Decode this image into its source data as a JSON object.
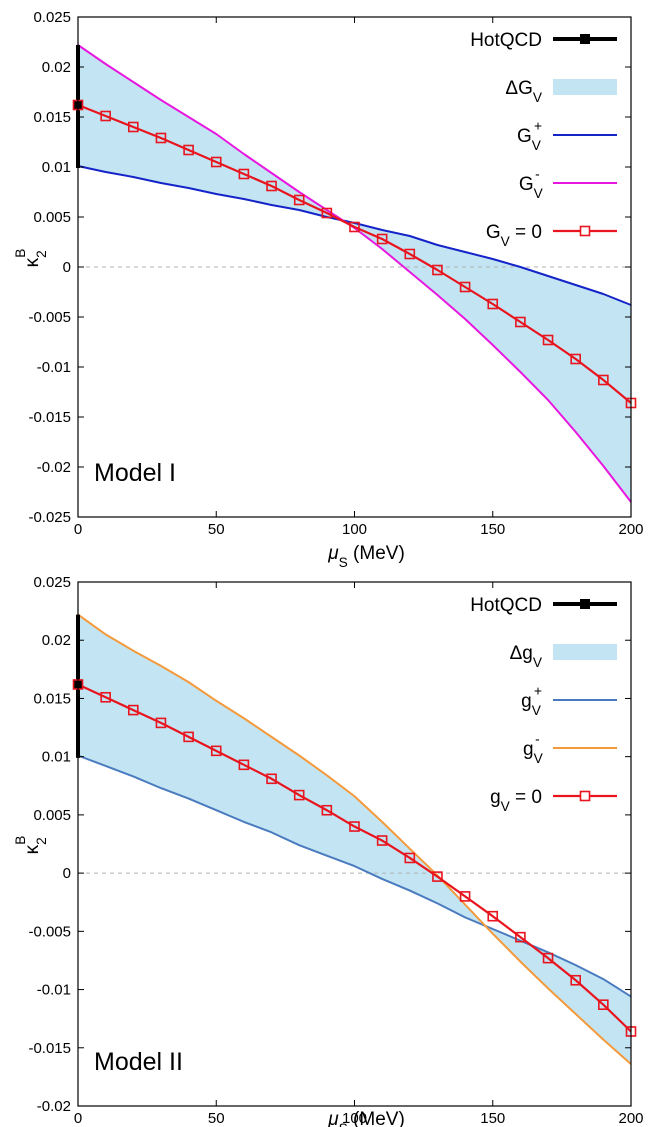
{
  "chart_data": [
    {
      "type": "line",
      "annotation": "Model I",
      "xlabel": "μS (MeV)",
      "ylabel": "κ2B",
      "xlim": [
        0,
        200
      ],
      "ylim": [
        -0.025,
        0.025
      ],
      "x_ticks": [
        "0",
        "50",
        "100",
        "150",
        "200"
      ],
      "y_ticks": [
        "0.025",
        "0.02",
        "0.015",
        "0.01",
        "0.005",
        "0",
        "-0.005",
        "-0.01",
        "-0.015",
        "-0.02",
        "-0.025"
      ],
      "zero_line": true,
      "legend_position": "top-right",
      "colors": {
        "band": "#c3e5f3",
        "upper": "#1424c8",
        "lower": "#e817e0",
        "main": "#e8141e",
        "hotqcd": "#000000"
      },
      "hotqcd": {
        "name": "HotQCD",
        "x": 0,
        "y_low": 0.0099,
        "y_high": 0.0222,
        "y_center": 0.0162
      },
      "band": {
        "name": "ΔGV"
      },
      "x": [
        0,
        10,
        20,
        30,
        40,
        50,
        60,
        70,
        80,
        90,
        100,
        110,
        120,
        130,
        140,
        150,
        160,
        170,
        180,
        190,
        200
      ],
      "series": [
        {
          "name": "GV+",
          "role": "upper",
          "values": [
            0.0101,
            0.0095,
            0.009,
            0.0084,
            0.0079,
            0.0073,
            0.0068,
            0.0062,
            0.0057,
            0.005,
            0.0044,
            0.0037,
            0.0031,
            0.0022,
            0.0015,
            0.0008,
            0.0,
            -0.0009,
            -0.0018,
            -0.0027,
            -0.0038
          ]
        },
        {
          "name": "GV-",
          "role": "lower",
          "values": [
            0.0222,
            0.0203,
            0.0185,
            0.0167,
            0.015,
            0.0133,
            0.0113,
            0.0094,
            0.0075,
            0.0057,
            0.0039,
            0.0018,
            -0.0005,
            -0.0028,
            -0.0052,
            -0.0078,
            -0.0105,
            -0.0133,
            -0.0165,
            -0.0199,
            -0.0235
          ]
        },
        {
          "name": "GV = 0",
          "role": "main",
          "values": [
            0.0162,
            0.0151,
            0.014,
            0.0129,
            0.0117,
            0.0105,
            0.0093,
            0.0081,
            0.0067,
            0.0054,
            0.004,
            0.0028,
            0.0013,
            -0.0003,
            -0.002,
            -0.0037,
            -0.0055,
            -0.0073,
            -0.0092,
            -0.0113,
            -0.0136
          ]
        }
      ]
    },
    {
      "type": "line",
      "annotation": "Model II",
      "xlabel": "μS (MeV)",
      "ylabel": "κ2B",
      "xlim": [
        0,
        200
      ],
      "ylim": [
        -0.02,
        0.025
      ],
      "x_ticks": [
        "0",
        "50",
        "100",
        "150",
        "200"
      ],
      "y_ticks": [
        "0.025",
        "0.02",
        "0.015",
        "0.01",
        "0.005",
        "0",
        "-0.005",
        "-0.01",
        "-0.015",
        "-0.02"
      ],
      "zero_line": true,
      "legend_position": "top-right",
      "colors": {
        "band": "#c3e5f3",
        "upper": "#4a7bbf",
        "lower": "#f49a3c",
        "main": "#e8141e",
        "hotqcd": "#000000"
      },
      "hotqcd": {
        "name": "HotQCD",
        "x": 0,
        "y_low": 0.0099,
        "y_high": 0.0222,
        "y_center": 0.0162
      },
      "band": {
        "name": "ΔgV"
      },
      "x": [
        0,
        10,
        20,
        30,
        40,
        50,
        60,
        70,
        80,
        90,
        100,
        110,
        120,
        130,
        140,
        150,
        160,
        170,
        180,
        190,
        200
      ],
      "series": [
        {
          "name": "gV+",
          "role": "upper",
          "values": [
            0.0101,
            0.0092,
            0.0083,
            0.0073,
            0.0064,
            0.0054,
            0.0044,
            0.0035,
            0.0024,
            0.0015,
            0.0006,
            -0.0005,
            -0.0015,
            -0.0026,
            -0.0038,
            -0.0048,
            -0.0058,
            -0.0068,
            -0.0079,
            -0.0091,
            -0.0106
          ]
        },
        {
          "name": "gV-",
          "role": "lower",
          "values": [
            0.0222,
            0.0205,
            0.0191,
            0.0178,
            0.0164,
            0.0148,
            0.0133,
            0.0117,
            0.0101,
            0.0084,
            0.0066,
            0.0044,
            0.0021,
            -0.0002,
            -0.0027,
            -0.0052,
            -0.0076,
            -0.0099,
            -0.0121,
            -0.0143,
            -0.0164
          ]
        },
        {
          "name": "gV = 0",
          "role": "main",
          "values": [
            0.0162,
            0.0151,
            0.014,
            0.0129,
            0.0117,
            0.0105,
            0.0093,
            0.0081,
            0.0067,
            0.0054,
            0.004,
            0.0028,
            0.0013,
            -0.0003,
            -0.002,
            -0.0037,
            -0.0055,
            -0.0073,
            -0.0092,
            -0.0113,
            -0.0136
          ]
        }
      ]
    }
  ]
}
